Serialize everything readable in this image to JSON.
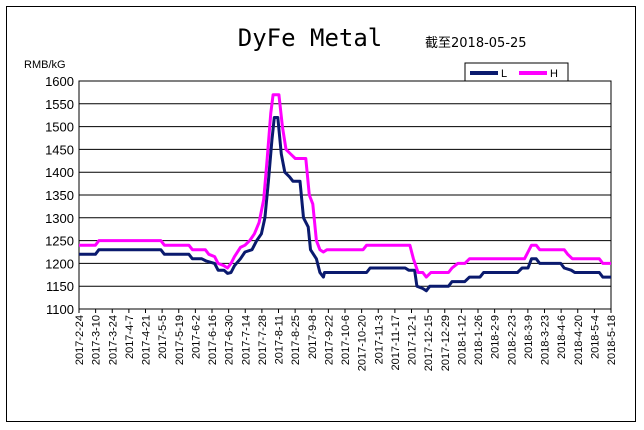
{
  "chart_data": {
    "type": "line",
    "title": "DyFe Metal",
    "subtitle": "截至2018-05-25",
    "ylabel": "RMB/kG",
    "xlabel": "",
    "ylim": [
      1100,
      1600
    ],
    "yticks": [
      1100,
      1150,
      1200,
      1250,
      1300,
      1350,
      1400,
      1450,
      1500,
      1550,
      1600
    ],
    "grid": true,
    "legend_position": "top-right",
    "x_range": [
      "2017-02-24",
      "2018-05-25"
    ],
    "x_tick_labels": [
      "2017-2-24",
      "2017-3-10",
      "2017-3-24",
      "2017-4-7",
      "2017-4-21",
      "2017-5-5",
      "2017-5-19",
      "2017-6-2",
      "2017-6-16",
      "2017-6-30",
      "2017-7-14",
      "2017-7-28",
      "2017-8-11",
      "2017-8-25",
      "2017-9-8",
      "2017-9-22",
      "2017-10-6",
      "2017-10-20",
      "2017-11-3",
      "2017-11-17",
      "2017-12-1",
      "2017-12-15",
      "2017-12-29",
      "2018-1-12",
      "2018-1-26",
      "2018-2-9",
      "2018-2-23",
      "2018-3-9",
      "2018-3-23",
      "2018-4-6",
      "2018-4-20",
      "2018-5-4",
      "2018-5-18"
    ],
    "series": [
      {
        "name": "L",
        "color": "#0a1a6e",
        "points": [
          [
            "2017-02-24",
            1220
          ],
          [
            "2017-03-10",
            1220
          ],
          [
            "2017-03-13",
            1230
          ],
          [
            "2017-05-05",
            1230
          ],
          [
            "2017-05-08",
            1220
          ],
          [
            "2017-05-29",
            1220
          ],
          [
            "2017-06-01",
            1210
          ],
          [
            "2017-06-09",
            1210
          ],
          [
            "2017-06-13",
            1205
          ],
          [
            "2017-06-20",
            1200
          ],
          [
            "2017-06-23",
            1185
          ],
          [
            "2017-06-28",
            1185
          ],
          [
            "2017-07-01",
            1178
          ],
          [
            "2017-07-04",
            1180
          ],
          [
            "2017-07-07",
            1195
          ],
          [
            "2017-07-12",
            1210
          ],
          [
            "2017-07-16",
            1225
          ],
          [
            "2017-07-22",
            1230
          ],
          [
            "2017-07-26",
            1250
          ],
          [
            "2017-07-30",
            1265
          ],
          [
            "2017-08-02",
            1300
          ],
          [
            "2017-08-05",
            1380
          ],
          [
            "2017-08-08",
            1470
          ],
          [
            "2017-08-10",
            1520
          ],
          [
            "2017-08-13",
            1520
          ],
          [
            "2017-08-16",
            1440
          ],
          [
            "2017-08-19",
            1400
          ],
          [
            "2017-08-23",
            1390
          ],
          [
            "2017-08-26",
            1380
          ],
          [
            "2017-09-01",
            1380
          ],
          [
            "2017-09-04",
            1300
          ],
          [
            "2017-09-08",
            1280
          ],
          [
            "2017-09-10",
            1230
          ],
          [
            "2017-09-15",
            1210
          ],
          [
            "2017-09-18",
            1180
          ],
          [
            "2017-09-21",
            1170
          ],
          [
            "2017-09-22",
            1180
          ],
          [
            "2017-10-28",
            1180
          ],
          [
            "2017-10-31",
            1190
          ],
          [
            "2017-11-30",
            1190
          ],
          [
            "2017-12-03",
            1185
          ],
          [
            "2017-12-08",
            1185
          ],
          [
            "2017-12-10",
            1150
          ],
          [
            "2017-12-15",
            1145
          ],
          [
            "2017-12-18",
            1140
          ],
          [
            "2017-12-21",
            1150
          ],
          [
            "2018-01-06",
            1150
          ],
          [
            "2018-01-09",
            1160
          ],
          [
            "2018-01-20",
            1160
          ],
          [
            "2018-01-24",
            1170
          ],
          [
            "2018-02-02",
            1170
          ],
          [
            "2018-02-05",
            1180
          ],
          [
            "2018-03-06",
            1180
          ],
          [
            "2018-03-10",
            1190
          ],
          [
            "2018-03-15",
            1190
          ],
          [
            "2018-03-18",
            1210
          ],
          [
            "2018-03-22",
            1210
          ],
          [
            "2018-03-25",
            1200
          ],
          [
            "2018-04-12",
            1200
          ],
          [
            "2018-04-15",
            1190
          ],
          [
            "2018-04-21",
            1185
          ],
          [
            "2018-04-24",
            1180
          ],
          [
            "2018-05-15",
            1180
          ],
          [
            "2018-05-18",
            1170
          ],
          [
            "2018-05-25",
            1170
          ]
        ]
      },
      {
        "name": "H",
        "color": "#ff00ff",
        "points": [
          [
            "2017-02-24",
            1240
          ],
          [
            "2017-03-10",
            1240
          ],
          [
            "2017-03-13",
            1250
          ],
          [
            "2017-05-05",
            1250
          ],
          [
            "2017-05-08",
            1240
          ],
          [
            "2017-05-29",
            1240
          ],
          [
            "2017-06-01",
            1230
          ],
          [
            "2017-06-12",
            1230
          ],
          [
            "2017-06-15",
            1220
          ],
          [
            "2017-06-20",
            1215
          ],
          [
            "2017-06-23",
            1200
          ],
          [
            "2017-06-28",
            1195
          ],
          [
            "2017-07-01",
            1190
          ],
          [
            "2017-07-04",
            1200
          ],
          [
            "2017-07-07",
            1215
          ],
          [
            "2017-07-12",
            1235
          ],
          [
            "2017-07-16",
            1240
          ],
          [
            "2017-07-20",
            1250
          ],
          [
            "2017-07-24",
            1265
          ],
          [
            "2017-07-28",
            1290
          ],
          [
            "2017-08-01",
            1340
          ],
          [
            "2017-08-04",
            1430
          ],
          [
            "2017-08-07",
            1530
          ],
          [
            "2017-08-09",
            1570
          ],
          [
            "2017-08-14",
            1570
          ],
          [
            "2017-08-17",
            1500
          ],
          [
            "2017-08-20",
            1450
          ],
          [
            "2017-08-24",
            1440
          ],
          [
            "2017-08-28",
            1430
          ],
          [
            "2017-09-06",
            1430
          ],
          [
            "2017-09-09",
            1350
          ],
          [
            "2017-09-12",
            1330
          ],
          [
            "2017-09-15",
            1250
          ],
          [
            "2017-09-18",
            1230
          ],
          [
            "2017-09-21",
            1225
          ],
          [
            "2017-09-24",
            1230
          ],
          [
            "2017-10-25",
            1230
          ],
          [
            "2017-10-28",
            1240
          ],
          [
            "2017-12-04",
            1240
          ],
          [
            "2017-12-07",
            1210
          ],
          [
            "2017-12-11",
            1180
          ],
          [
            "2017-12-15",
            1180
          ],
          [
            "2017-12-18",
            1170
          ],
          [
            "2017-12-22",
            1180
          ],
          [
            "2018-01-06",
            1180
          ],
          [
            "2018-01-09",
            1190
          ],
          [
            "2018-01-14",
            1200
          ],
          [
            "2018-01-20",
            1200
          ],
          [
            "2018-01-24",
            1210
          ],
          [
            "2018-03-12",
            1210
          ],
          [
            "2018-03-15",
            1225
          ],
          [
            "2018-03-18",
            1240
          ],
          [
            "2018-03-22",
            1240
          ],
          [
            "2018-03-25",
            1230
          ],
          [
            "2018-04-15",
            1230
          ],
          [
            "2018-04-18",
            1220
          ],
          [
            "2018-04-22",
            1210
          ],
          [
            "2018-05-15",
            1210
          ],
          [
            "2018-05-18",
            1200
          ],
          [
            "2018-05-25",
            1200
          ]
        ]
      }
    ]
  }
}
